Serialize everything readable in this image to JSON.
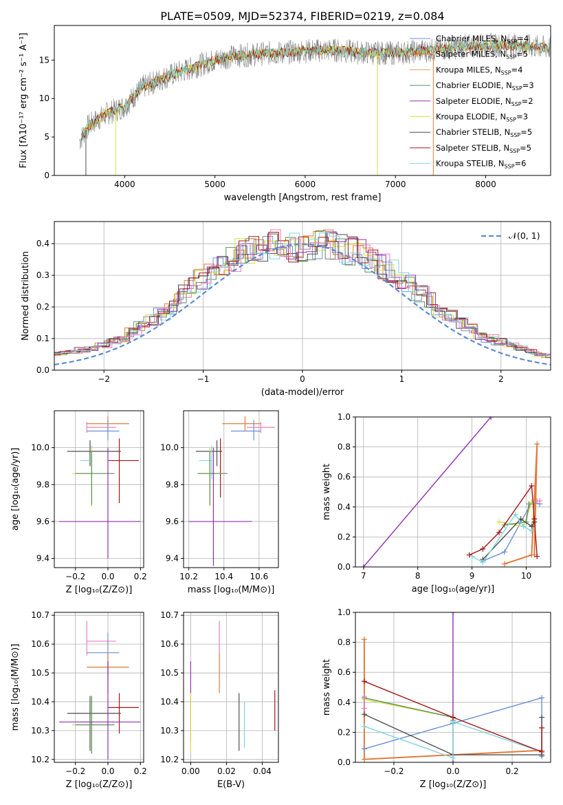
{
  "figure": {
    "title": "PLATE=0509, MJD=52374, FIBERID=0219, z=0.084"
  },
  "colors": {
    "chabrier_miles": "#6a8fd4",
    "salpeter_miles": "#e07b39",
    "kroupa_miles": "#d9a05b",
    "chabrier_elodie": "#5a8f5a",
    "salpeter_elodie": "#8e2fb0",
    "kroupa_elodie": "#d6e03a",
    "chabrier_stelib": "#4d4d4d",
    "salpeter_stelib": "#a31515",
    "kroupa_stelib": "#7fd6e0",
    "data": "#808080",
    "gaussian": "#5b8bd0",
    "extra": "#e67fbf"
  },
  "chart_data": [
    {
      "id": "spectrum",
      "type": "line",
      "title": "PLATE=0509, MJD=52374, FIBERID=0219, z=0.084",
      "xlabel": "wavelength [Angstrom, rest frame]",
      "ylabel": "Flux [fλ10⁻¹⁷ erg cm⁻² s⁻¹ A⁻¹]",
      "xlim": [
        3220,
        8720
      ],
      "ylim": [
        0,
        19.5
      ],
      "xticks": [
        "4000",
        "5000",
        "6000",
        "7000",
        "8000"
      ],
      "yticks": [
        "0",
        "5",
        "10",
        "15"
      ],
      "continuum": {
        "x": [
          3500,
          3600,
          3800,
          4000,
          4200,
          4500,
          4800,
          5000,
          5200,
          5500,
          5800,
          6000,
          6300,
          6600,
          7000,
          7400,
          7800,
          8200,
          8700
        ],
        "y": [
          4.5,
          6.5,
          8.0,
          9.0,
          11.5,
          13.0,
          14.2,
          15.0,
          15.5,
          15.8,
          16.0,
          16.2,
          16.3,
          16.0,
          15.9,
          16.3,
          16.8,
          17.0,
          16.6
        ]
      },
      "legend": [
        {
          "name": "Chabrier MILES, N",
          "sub": "SSP",
          "val": "=4"
        },
        {
          "name": "Salpeter MILES, N",
          "sub": "SSP",
          "val": "=5"
        },
        {
          "name": "Kroupa MILES, N",
          "sub": "SSP",
          "val": "=4"
        },
        {
          "name": "Chabrier ELODIE, N",
          "sub": "SSP",
          "val": "=3"
        },
        {
          "name": "Salpeter ELODIE, N",
          "sub": "SSP",
          "val": "=2"
        },
        {
          "name": "Kroupa ELODIE, N",
          "sub": "SSP",
          "val": "=3"
        },
        {
          "name": "Chabrier STELIB, N",
          "sub": "SSP",
          "val": "=5"
        },
        {
          "name": "Salpeter STELIB, N",
          "sub": "SSP",
          "val": "=5"
        },
        {
          "name": "Kroupa STELIB, N",
          "sub": "SSP",
          "val": "=6"
        }
      ],
      "legend_placement": "right"
    },
    {
      "id": "residuals",
      "type": "line",
      "xlabel": "(data-model)/error",
      "ylabel": "Normed distribution",
      "xlim": [
        -2.5,
        2.5
      ],
      "ylim": [
        0,
        0.47
      ],
      "xticks": [
        "−2",
        "−1",
        "0",
        "1",
        "2"
      ],
      "yticks": [
        "0.0",
        "0.1",
        "0.2",
        "0.3",
        "0.4"
      ],
      "bin_width": 0.1,
      "hist_base": [
        0.015,
        0.02,
        0.025,
        0.03,
        0.035,
        0.04,
        0.045,
        0.05,
        0.055,
        0.06,
        0.065,
        0.07,
        0.08,
        0.09,
        0.1,
        0.12,
        0.14,
        0.16,
        0.18,
        0.2,
        0.24,
        0.27,
        0.29,
        0.31,
        0.33,
        0.35,
        0.37,
        0.38,
        0.39,
        0.4,
        0.4,
        0.39,
        0.38,
        0.39,
        0.4,
        0.4,
        0.39,
        0.38,
        0.37,
        0.35,
        0.33,
        0.31,
        0.29,
        0.27,
        0.24,
        0.22,
        0.19,
        0.17,
        0.15,
        0.13,
        0.11,
        0.1,
        0.09,
        0.08,
        0.07,
        0.06,
        0.05,
        0.045,
        0.04,
        0.035,
        0.03,
        0.028,
        0.025,
        0.02,
        0.018,
        0.015
      ],
      "gaussian_label": "𝒩(0, 1)",
      "legend_placement": "top-right"
    },
    {
      "id": "age_vs_Z",
      "type": "scatter",
      "xlabel": "Z [log₁₀(Z/Z⊙)]",
      "ylabel": "age  [log₁₀(age/yr)]",
      "xlim": [
        -0.33,
        0.22
      ],
      "ylim": [
        9.35,
        10.2
      ],
      "xticks": [
        "−0.2",
        "0.0",
        "0.2"
      ],
      "yticks": [
        "9.4",
        "9.6",
        "9.8",
        "10.0"
      ],
      "points": [
        {
          "c": "salpeter_miles",
          "x": 0.0,
          "xerr": [
            0.13,
            0.13
          ],
          "y": 10.13,
          "yerr": [
            0.04,
            0.04
          ]
        },
        {
          "c": "chabrier_miles",
          "x": 0.0,
          "xerr": [
            0.13,
            0.07
          ],
          "y": 10.09,
          "yerr": [
            0.05,
            0.06
          ]
        },
        {
          "c": "extra",
          "x": -0.13,
          "xerr": [
            0.0,
            0.18
          ],
          "y": 10.11,
          "yerr": [
            0.03,
            0.03
          ]
        },
        {
          "c": "chabrier_stelib",
          "x": -0.11,
          "xerr": [
            0.14,
            0.19
          ],
          "y": 9.98,
          "yerr": [
            0.08,
            0.06
          ]
        },
        {
          "c": "kroupa_stelib",
          "x": -0.1,
          "xerr": [
            0.07,
            0.0
          ],
          "y": 9.93,
          "yerr": [
            0.1,
            0.08
          ]
        },
        {
          "c": "salpeter_stelib",
          "x": 0.07,
          "xerr": [
            0.07,
            0.12
          ],
          "y": 9.93,
          "yerr": [
            0.23,
            0.12
          ]
        },
        {
          "c": "kroupa_elodie",
          "x": -0.1,
          "xerr": [
            0.12,
            0.0
          ],
          "y": 9.86,
          "yerr": [
            0.18,
            0.14
          ]
        },
        {
          "c": "chabrier_elodie",
          "x": -0.1,
          "xerr": [
            0.1,
            0.14
          ],
          "y": 9.86,
          "yerr": [
            0.17,
            0.12
          ]
        },
        {
          "c": "salpeter_elodie",
          "x": 0.0,
          "xerr": [
            0.3,
            0.2
          ],
          "y": 9.6,
          "yerr": [
            0.2,
            0.4
          ]
        }
      ]
    },
    {
      "id": "age_vs_mass",
      "type": "scatter",
      "xlabel": "mass [log₁₀(M/M⊙)]",
      "xlim": [
        10.17,
        10.71
      ],
      "ylim": [
        9.35,
        10.2
      ],
      "xticks": [
        "10.2",
        "10.4",
        "10.6"
      ],
      "yticks": [
        "9.4",
        "9.6",
        "9.8",
        "10.0"
      ],
      "points": [
        {
          "c": "salpeter_miles",
          "x": 10.52,
          "xerr": [
            0.13,
            0.09
          ],
          "y": 10.13,
          "yerr": [
            0.04,
            0.04
          ]
        },
        {
          "c": "chabrier_miles",
          "x": 10.57,
          "xerr": [
            0.13,
            0.04
          ],
          "y": 10.09,
          "yerr": [
            0.05,
            0.06
          ]
        },
        {
          "c": "extra",
          "x": 10.61,
          "xerr": [
            0.08,
            0.08
          ],
          "y": 10.11,
          "yerr": [
            0.03,
            0.03
          ]
        },
        {
          "c": "chabrier_stelib",
          "x": 10.36,
          "xerr": [
            0.12,
            0.03
          ],
          "y": 9.98,
          "yerr": [
            0.08,
            0.06
          ]
        },
        {
          "c": "kroupa_stelib",
          "x": 10.33,
          "xerr": [
            0.07,
            0.0
          ],
          "y": 9.93,
          "yerr": [
            0.1,
            0.08
          ]
        },
        {
          "c": "salpeter_stelib",
          "x": 10.38,
          "xerr": [
            0.0,
            0.0
          ],
          "y": 9.93,
          "yerr": [
            0.2,
            0.12
          ]
        },
        {
          "c": "kroupa_elodie",
          "x": 10.32,
          "xerr": [
            0.07,
            0.09
          ],
          "y": 9.86,
          "yerr": [
            0.18,
            0.14
          ]
        },
        {
          "c": "chabrier_elodie",
          "x": 10.32,
          "xerr": [
            0.07,
            0.1
          ],
          "y": 9.86,
          "yerr": [
            0.17,
            0.12
          ]
        },
        {
          "c": "salpeter_elodie",
          "x": 10.34,
          "xerr": [
            0.14,
            0.22
          ],
          "y": 9.6,
          "yerr": [
            0.24,
            0.4
          ]
        }
      ]
    },
    {
      "id": "weight_vs_age",
      "type": "line",
      "xlabel": "age  [log₁₀(age/yr)]",
      "ylabel": "mass weight",
      "xlim": [
        6.85,
        10.45
      ],
      "ylim": [
        0,
        1.0
      ],
      "xticks": [
        "7",
        "8",
        "9",
        "10"
      ],
      "yticks": [
        "0.0",
        "0.2",
        "0.4",
        "0.6",
        "0.8",
        "1.0"
      ],
      "series": [
        {
          "c": "salpeter_elodie",
          "x": [
            7.0,
            9.35
          ],
          "y": [
            0.0,
            1.0
          ]
        },
        {
          "c": "salpeter_miles",
          "x": [
            9.6,
            10.1,
            10.2,
            10.15
          ],
          "y": [
            0.02,
            0.08,
            0.82,
            0.08
          ]
        },
        {
          "c": "chabrier_miles",
          "x": [
            9.2,
            9.6,
            10.1,
            10.25
          ],
          "y": [
            0.04,
            0.1,
            0.43,
            0.42
          ]
        },
        {
          "c": "kroupa_elodie",
          "x": [
            9.5,
            9.95,
            10.1
          ],
          "y": [
            0.3,
            0.27,
            0.43
          ]
        },
        {
          "c": "chabrier_elodie",
          "x": [
            9.6,
            10.0,
            10.05
          ],
          "y": [
            0.28,
            0.3,
            0.42
          ]
        },
        {
          "c": "chabrier_stelib",
          "x": [
            9.2,
            9.9,
            10.1,
            10.15
          ],
          "y": [
            0.05,
            0.32,
            0.27,
            0.3
          ]
        },
        {
          "c": "kroupa_stelib",
          "x": [
            9.0,
            9.2,
            9.8,
            9.95,
            10.1
          ],
          "y": [
            0.07,
            0.03,
            0.35,
            0.27,
            0.24
          ]
        },
        {
          "c": "salpeter_stelib",
          "x": [
            8.95,
            9.2,
            9.5,
            10.1,
            10.15,
            10.2
          ],
          "y": [
            0.08,
            0.12,
            0.23,
            0.54,
            0.32,
            0.07
          ]
        },
        {
          "c": "extra",
          "x": [
            10.2,
            10.25
          ],
          "y": [
            0.44,
            0.44
          ]
        }
      ]
    },
    {
      "id": "mass_vs_Z",
      "type": "scatter",
      "xlabel": "Z [log₁₀(Z/Z⊙)]",
      "ylabel": "mass [log₁₀(M/M⊙)]",
      "xlim": [
        -0.33,
        0.22
      ],
      "ylim": [
        10.19,
        10.71
      ],
      "xticks": [
        "−0.2",
        "0.0",
        "0.2"
      ],
      "yticks": [
        "10.2",
        "10.3",
        "10.4",
        "10.5",
        "10.6",
        "10.7"
      ],
      "points": [
        {
          "c": "extra",
          "x": -0.13,
          "xerr": [
            0.0,
            0.18
          ],
          "y": 10.61,
          "yerr": [
            0.05,
            0.07
          ]
        },
        {
          "c": "chabrier_miles",
          "x": 0.0,
          "xerr": [
            0.13,
            0.07
          ],
          "y": 10.57,
          "yerr": [
            0.08,
            0.07
          ]
        },
        {
          "c": "salpeter_miles",
          "x": 0.0,
          "xerr": [
            0.13,
            0.13
          ],
          "y": 10.52,
          "yerr": [
            0.09,
            0.05
          ]
        },
        {
          "c": "salpeter_stelib",
          "x": 0.07,
          "xerr": [
            0.07,
            0.12
          ],
          "y": 10.38,
          "yerr": [
            0.09,
            0.05
          ]
        },
        {
          "c": "chabrier_stelib",
          "x": -0.11,
          "xerr": [
            0.14,
            0.19
          ],
          "y": 10.36,
          "yerr": [
            0.13,
            0.06
          ]
        },
        {
          "c": "kroupa_stelib",
          "x": -0.1,
          "xerr": [
            0.07,
            0.0
          ],
          "y": 10.33,
          "yerr": [
            0.1,
            0.08
          ]
        },
        {
          "c": "kroupa_elodie",
          "x": -0.1,
          "xerr": [
            0.12,
            0.0
          ],
          "y": 10.32,
          "yerr": [
            0.1,
            0.1
          ]
        },
        {
          "c": "chabrier_elodie",
          "x": -0.1,
          "xerr": [
            0.1,
            0.14
          ],
          "y": 10.32,
          "yerr": [
            0.1,
            0.1
          ]
        },
        {
          "c": "salpeter_elodie",
          "x": 0.0,
          "xerr": [
            0.3,
            0.2
          ],
          "y": 10.33,
          "yerr": [
            0.13,
            0.21
          ]
        }
      ]
    },
    {
      "id": "mass_vs_ebv",
      "type": "scatter",
      "xlabel": "E(B-V)",
      "xlim": [
        -0.004,
        0.049
      ],
      "ylim": [
        10.19,
        10.71
      ],
      "xticks": [
        "0.00",
        "0.02",
        "0.04"
      ],
      "yticks": [
        "10.2",
        "10.3",
        "10.4",
        "10.5",
        "10.6",
        "10.7"
      ],
      "points": [
        {
          "c": "salpeter_elodie",
          "x": 0.0,
          "y": 10.4,
          "yerr": [
            0.14,
            0.14
          ]
        },
        {
          "c": "kroupa_elodie",
          "x": 0.0,
          "y": 10.33,
          "yerr": [
            0.1,
            0.1
          ]
        },
        {
          "c": "extra",
          "x": 0.016,
          "y": 10.61,
          "yerr": [
            0.05,
            0.07
          ]
        },
        {
          "c": "salpeter_miles",
          "x": 0.016,
          "y": 10.52,
          "yerr": [
            0.09,
            0.05
          ]
        },
        {
          "c": "chabrier_stelib",
          "x": 0.027,
          "y": 10.33,
          "yerr": [
            0.1,
            0.1
          ]
        },
        {
          "c": "kroupa_stelib",
          "x": 0.03,
          "y": 10.32,
          "yerr": [
            0.08,
            0.08
          ]
        },
        {
          "c": "salpeter_stelib",
          "x": 0.047,
          "y": 10.37,
          "yerr": [
            0.07,
            0.07
          ]
        }
      ]
    },
    {
      "id": "weight_vs_Z",
      "type": "line",
      "xlabel": "Z [log₁₀(Z/Z⊙)]",
      "ylabel": "mass weight",
      "xlim": [
        -0.33,
        0.33
      ],
      "ylim": [
        0,
        1.0
      ],
      "xticks": [
        "−0.2",
        "0.0",
        "0.2"
      ],
      "yticks": [
        "0.0",
        "0.2",
        "0.4",
        "0.6",
        "0.8",
        "1.0"
      ],
      "series": [
        {
          "c": "salpeter_elodie",
          "x": [
            0.0,
            0.0
          ],
          "y": [
            0.0,
            1.0
          ]
        },
        {
          "c": "salpeter_miles",
          "x": [
            -0.3,
            -0.3,
            0.0,
            0.3
          ],
          "y": [
            0.82,
            0.02,
            0.05,
            0.08
          ]
        },
        {
          "c": "chabrier_miles",
          "x": [
            -0.3,
            0.0,
            0.3,
            0.3
          ],
          "y": [
            0.09,
            0.26,
            0.43,
            0.04
          ]
        },
        {
          "c": "kroupa_elodie",
          "x": [
            -0.3,
            0.0,
            0.0
          ],
          "y": [
            0.42,
            0.3,
            0.27
          ]
        },
        {
          "c": "chabrier_elodie",
          "x": [
            -0.3,
            0.0,
            0.0
          ],
          "y": [
            0.43,
            0.3,
            0.28
          ]
        },
        {
          "c": "chabrier_stelib",
          "x": [
            -0.3,
            0.0,
            0.3,
            0.3
          ],
          "y": [
            0.32,
            0.05,
            0.05,
            0.3
          ]
        },
        {
          "c": "kroupa_stelib",
          "x": [
            -0.3,
            0.0,
            0.0,
            0.3
          ],
          "y": [
            0.24,
            0.03,
            0.27,
            0.07
          ]
        },
        {
          "c": "salpeter_stelib",
          "x": [
            -0.3,
            0.0,
            0.3,
            0.3
          ],
          "y": [
            0.54,
            0.3,
            0.07,
            0.23
          ]
        },
        {
          "c": "extra",
          "x": [
            -0.3,
            -0.3
          ],
          "y": [
            0.36,
            0.44
          ]
        }
      ]
    }
  ]
}
